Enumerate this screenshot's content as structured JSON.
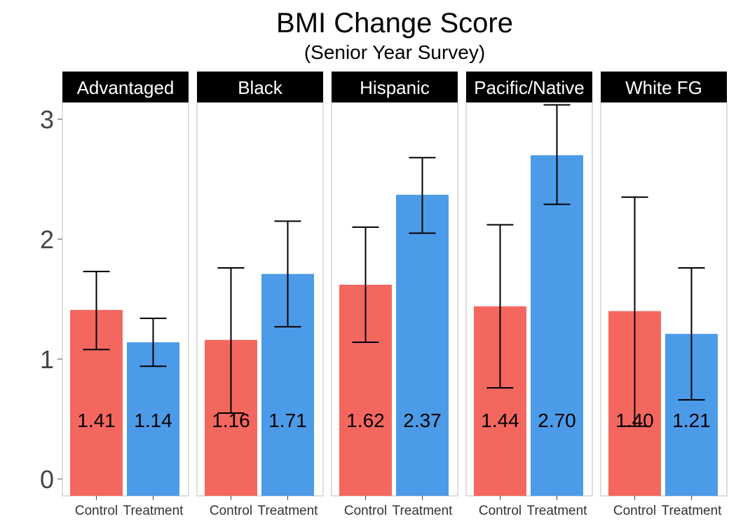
{
  "chart_data": {
    "type": "bar",
    "title": "BMI Change Score",
    "subtitle": "(Senior Year Survey)",
    "xlabel": "",
    "ylabel": "",
    "ylim": [
      0,
      3.15
    ],
    "yticks": [
      0,
      1,
      2,
      3
    ],
    "grid": false,
    "legend": "none",
    "categories": [
      "Control",
      "Treatment"
    ],
    "colors": {
      "Control": "#F4675F",
      "Treatment": "#4C9BE8",
      "strip": "#000000",
      "error_bar": "#000000"
    },
    "panels": [
      {
        "name": "Advantaged",
        "values": [
          1.41,
          1.14
        ],
        "labels": [
          "1.41",
          "1.14"
        ],
        "error_low": [
          1.08,
          0.94
        ],
        "error_high": [
          1.73,
          1.34
        ]
      },
      {
        "name": "Black",
        "values": [
          1.16,
          1.71
        ],
        "labels": [
          "1.16",
          "1.71"
        ],
        "error_low": [
          0.55,
          1.27
        ],
        "error_high": [
          1.76,
          2.15
        ]
      },
      {
        "name": "Hispanic",
        "values": [
          1.62,
          2.37
        ],
        "labels": [
          "1.62",
          "2.37"
        ],
        "error_low": [
          1.14,
          2.05
        ],
        "error_high": [
          2.1,
          2.68
        ]
      },
      {
        "name": "Pacific/Native",
        "values": [
          1.44,
          2.7
        ],
        "labels": [
          "1.44",
          "2.70"
        ],
        "error_low": [
          0.76,
          2.29
        ],
        "error_high": [
          2.12,
          3.12
        ]
      },
      {
        "name": "White FG",
        "values": [
          1.4,
          1.21
        ],
        "labels": [
          "1.40",
          "1.21"
        ],
        "error_low": [
          0.44,
          0.66
        ],
        "error_high": [
          2.35,
          1.76
        ]
      }
    ]
  }
}
